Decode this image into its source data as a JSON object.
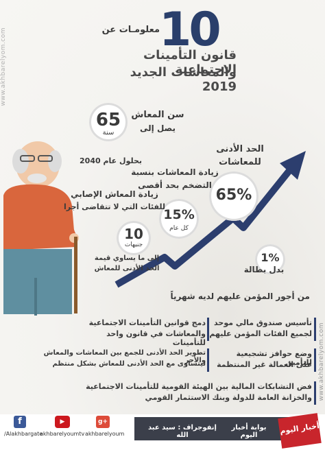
{
  "header": {
    "number": "10",
    "subtitle": "معلومـات عن",
    "title_line1": "قانون التأمينات الاجتماعية",
    "title_line2": "والمعاشات الجديد 2019"
  },
  "age": {
    "label": "سن المعاش",
    "sublabel": "يصل إلى",
    "value": "65",
    "unit": "سنة",
    "year_note": "بحلول عام 2040"
  },
  "stats": {
    "min_pension_label_1": "الحد الأدنى",
    "min_pension_label_2": "للمعاشات",
    "min_pension_value": "65%",
    "raise_label_1": "زيادة المعاشات بنسبة",
    "raise_label_2": "التضخم بحد أقصى",
    "raise_value": "15%",
    "raise_unit": "كل عام",
    "injury_label_1": "زيادة المعاش الإصابي",
    "injury_label_2": "للفئات التي لا تتقاضى أجرا",
    "injury_value": "10",
    "injury_unit": "جنيهات",
    "injury_note_1": "إلى ما يساوي قيمة",
    "injury_note_2": "الحد الأدنى للمعاش",
    "unemp_value": "1%",
    "unemp_label": "بدل بطالة",
    "wage_note": "من أجور المؤمن عليهم لديه شهرياً"
  },
  "points": [
    {
      "line1": "دمج قوانين التأمينات الاجتماعية",
      "line2": "والمعاشات في قانون واحد للتأمينات"
    },
    {
      "line1": "تأسيس صندوق مالي موحد",
      "line2": "لجميع الفئات المؤمن عليهم"
    },
    {
      "line1": "تطوير الحد الأدنى للجمع بين المعاشات والمعاش والأجر",
      "line2": "ليتساوى مع الحد الأدنى للمعاش بشكل منتظم"
    },
    {
      "line1": "وضع حوافز تشجيعية للتأمين",
      "line2": "على العمالة غير المنتظمة"
    },
    {
      "line1": "فض التشابكات المالية بين الهيئة القومية للتأمينات الاجتماعية",
      "line2": "والخزانة العامة للدولة وبنك الاستثمار القومي"
    }
  ],
  "watermark": "www.akhbarelyom.com",
  "footer": {
    "portal": "بوابة أخبار اليوم",
    "credit": "إنفوجراف : سيد عبد الله",
    "logo_text": "أخبار اليوم",
    "facebook": "/Alakhbargate",
    "youtube": "akhbarelyoumtv",
    "gplus": "akhbarelyoum",
    "colors": {
      "facebook": "#3b5998",
      "youtube": "#cc181e",
      "gplus": "#dd4b39",
      "accent": "#2c3e6e"
    }
  }
}
